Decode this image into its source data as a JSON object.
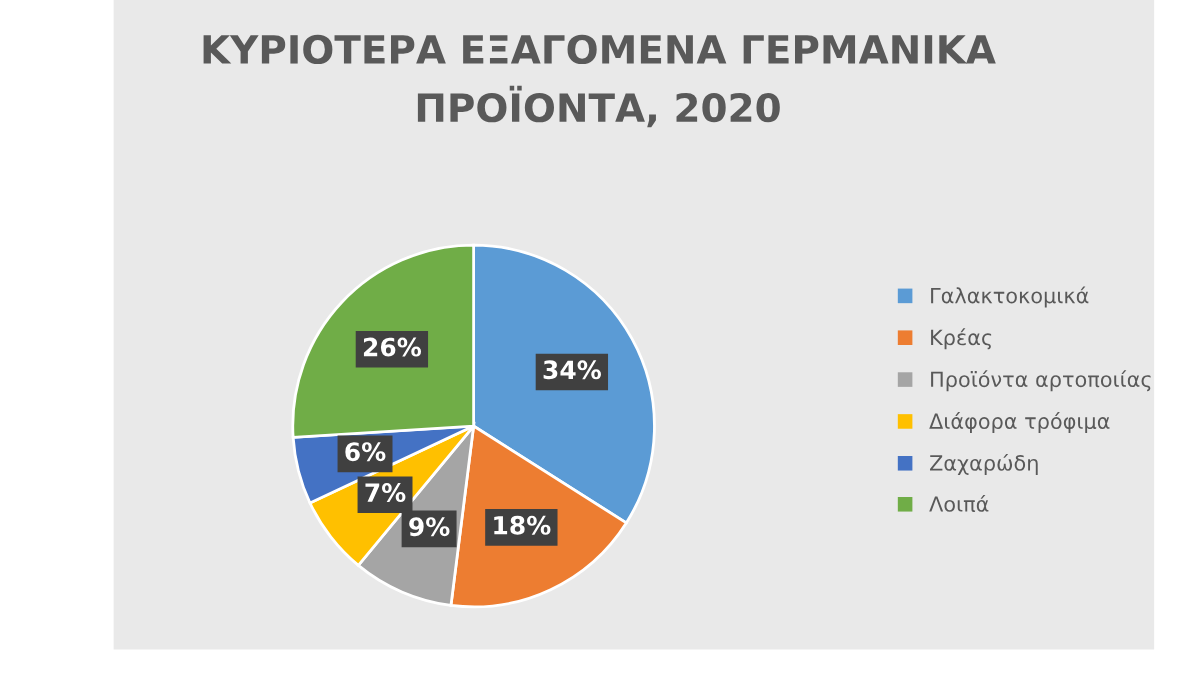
{
  "chart_data": {
    "type": "pie",
    "title": "ΚΥΡΙΟΤΕΡΑ ΕΞΑΓΟΜΕΝΑ ΓΕΡΜΑΝΙΚΑ\nΠΡΟΪΟΝΤΑ, 2020",
    "categories": [
      "Γαλακτοκομικά",
      "Κρέας",
      "Προϊόντα αρτοποιίας",
      "Διάφορα τρόφιμα",
      "Ζαχαρώδη",
      "Λοιπά"
    ],
    "values": [
      34,
      18,
      9,
      7,
      6,
      26
    ],
    "value_labels": [
      "34%",
      "18%",
      "9%",
      "7%",
      "6%",
      "26%"
    ],
    "colors": [
      "#5b9bd5",
      "#ed7d31",
      "#a5a5a5",
      "#ffc000",
      "#4472c4",
      "#70ad47"
    ],
    "legend": "right"
  }
}
